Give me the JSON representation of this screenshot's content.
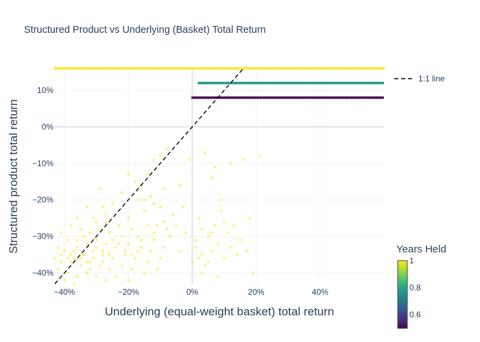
{
  "chart_data": {
    "type": "scatter",
    "title": "Structured Product vs Underlying (Basket) Total Return",
    "xlabel": "Underlying (equal-weight basket) total return",
    "ylabel": "Structured product total return",
    "xlim": [
      -0.43,
      0.6
    ],
    "ylim": [
      -0.43,
      0.16
    ],
    "x_ticks": [
      -0.4,
      -0.2,
      0,
      0.2,
      0.4
    ],
    "x_tick_labels": [
      "−40%",
      "−20%",
      "0%",
      "20%",
      "40%"
    ],
    "y_ticks": [
      -0.4,
      -0.3,
      -0.2,
      -0.1,
      0,
      0.1
    ],
    "y_tick_labels": [
      "−40%",
      "−30%",
      "−20%",
      "−10%",
      "0%",
      "10%"
    ],
    "grid": true,
    "reference_line": {
      "name": "1:1 line",
      "style": "dashed",
      "color": "#000000"
    },
    "colorbar": {
      "title": "Years Held",
      "colorscale": "Viridis",
      "range": [
        0.5,
        1.0
      ],
      "tick_values": [
        0.6,
        0.8,
        1.0
      ],
      "tick_labels": [
        "0.6",
        "0.8",
        "1"
      ]
    },
    "horizontal_bands": [
      {
        "years_held": 1.0,
        "y": 0.16,
        "x_range": [
          -0.43,
          0.6
        ],
        "color": "#fde725"
      },
      {
        "years_held": 0.75,
        "y": 0.12,
        "x_range": [
          0.02,
          0.6
        ],
        "color": "#21918c"
      },
      {
        "years_held": 0.5,
        "y": 0.08,
        "x_range": [
          0.0,
          0.6
        ],
        "color": "#440154"
      }
    ],
    "scattered_points": {
      "years_held": 1.0,
      "color": "#fde725",
      "points": [
        [
          -0.08,
          -0.06
        ],
        [
          -0.1,
          -0.08
        ],
        [
          -0.12,
          -0.09
        ],
        [
          -0.14,
          -0.13
        ],
        [
          -0.16,
          -0.16
        ],
        [
          -0.2,
          -0.13
        ],
        [
          -0.18,
          -0.15
        ],
        [
          -0.04,
          -0.16
        ],
        [
          -0.09,
          -0.17
        ],
        [
          -0.13,
          -0.19
        ],
        [
          -0.17,
          -0.2
        ],
        [
          -0.22,
          -0.18
        ],
        [
          -0.25,
          -0.21
        ],
        [
          -0.29,
          -0.17
        ],
        [
          -0.28,
          -0.22
        ],
        [
          -0.24,
          -0.24
        ],
        [
          -0.2,
          -0.25
        ],
        [
          -0.15,
          -0.23
        ],
        [
          -0.1,
          -0.22
        ],
        [
          -0.06,
          -0.24
        ],
        [
          -0.03,
          -0.22
        ],
        [
          -0.33,
          -0.22
        ],
        [
          -0.36,
          -0.25
        ],
        [
          -0.31,
          -0.25
        ],
        [
          -0.27,
          -0.26
        ],
        [
          -0.23,
          -0.27
        ],
        [
          -0.19,
          -0.28
        ],
        [
          -0.14,
          -0.27
        ],
        [
          -0.09,
          -0.26
        ],
        [
          -0.05,
          -0.27
        ],
        [
          -0.02,
          -0.29
        ],
        [
          -0.38,
          -0.27
        ],
        [
          -0.35,
          -0.28
        ],
        [
          -0.32,
          -0.29
        ],
        [
          -0.29,
          -0.28
        ],
        [
          -0.26,
          -0.29
        ],
        [
          -0.22,
          -0.3
        ],
        [
          -0.17,
          -0.3
        ],
        [
          -0.12,
          -0.29
        ],
        [
          -0.07,
          -0.3
        ],
        [
          -0.41,
          -0.29
        ],
        [
          -0.39,
          -0.31
        ],
        [
          -0.36,
          -0.31
        ],
        [
          -0.33,
          -0.32
        ],
        [
          -0.3,
          -0.31
        ],
        [
          -0.27,
          -0.32
        ],
        [
          -0.24,
          -0.33
        ],
        [
          -0.2,
          -0.32
        ],
        [
          -0.16,
          -0.33
        ],
        [
          -0.13,
          -0.34
        ],
        [
          -0.09,
          -0.33
        ],
        [
          -0.04,
          -0.34
        ],
        [
          -0.42,
          -0.33
        ],
        [
          -0.4,
          -0.34
        ],
        [
          -0.37,
          -0.34
        ],
        [
          -0.34,
          -0.35
        ],
        [
          -0.31,
          -0.34
        ],
        [
          -0.28,
          -0.35
        ],
        [
          -0.25,
          -0.36
        ],
        [
          -0.21,
          -0.35
        ],
        [
          -0.18,
          -0.36
        ],
        [
          -0.14,
          -0.37
        ],
        [
          -0.1,
          -0.36
        ],
        [
          -0.43,
          -0.36
        ],
        [
          -0.41,
          -0.37
        ],
        [
          -0.38,
          -0.37
        ],
        [
          -0.35,
          -0.38
        ],
        [
          -0.32,
          -0.37
        ],
        [
          -0.29,
          -0.38
        ],
        [
          -0.26,
          -0.39
        ],
        [
          -0.22,
          -0.38
        ],
        [
          -0.19,
          -0.39
        ],
        [
          -0.15,
          -0.4
        ],
        [
          -0.11,
          -0.39
        ],
        [
          -0.42,
          -0.39
        ],
        [
          -0.39,
          -0.4
        ],
        [
          -0.36,
          -0.41
        ],
        [
          -0.33,
          -0.4
        ],
        [
          -0.3,
          -0.41
        ],
        [
          -0.27,
          -0.42
        ],
        [
          -0.24,
          -0.41
        ],
        [
          -0.2,
          -0.42
        ],
        [
          -0.4,
          -0.42
        ],
        [
          -0.37,
          -0.43
        ],
        [
          -0.34,
          -0.35
        ],
        [
          -0.36,
          -0.33
        ],
        [
          -0.38,
          -0.35
        ],
        [
          -0.37,
          -0.36
        ],
        [
          -0.35,
          -0.36
        ],
        [
          -0.33,
          -0.37
        ],
        [
          -0.31,
          -0.36
        ],
        [
          -0.3,
          -0.33
        ],
        [
          -0.28,
          -0.34
        ],
        [
          -0.26,
          -0.35
        ],
        [
          -0.25,
          -0.31
        ],
        [
          -0.23,
          -0.32
        ],
        [
          -0.21,
          -0.34
        ],
        [
          -0.19,
          -0.35
        ],
        [
          -0.17,
          -0.34
        ],
        [
          -0.16,
          -0.31
        ],
        [
          -0.12,
          -0.31
        ],
        [
          -0.11,
          -0.27
        ],
        [
          -0.08,
          -0.28
        ],
        [
          -0.15,
          -0.2
        ],
        [
          -0.12,
          -0.21
        ],
        [
          -0.27,
          -0.24
        ],
        [
          -0.3,
          -0.26
        ],
        [
          -0.34,
          -0.3
        ],
        [
          -0.39,
          -0.36
        ],
        [
          -0.41,
          -0.35
        ],
        [
          -0.32,
          -0.39
        ],
        [
          -0.28,
          -0.37
        ],
        [
          0.02,
          -0.36
        ],
        [
          0.03,
          -0.4
        ],
        [
          0.04,
          -0.38
        ],
        [
          0.05,
          -0.3
        ],
        [
          0.06,
          -0.14
        ],
        [
          0.07,
          -0.27
        ],
        [
          0.08,
          -0.32
        ],
        [
          0.09,
          -0.23
        ],
        [
          0.1,
          -0.26
        ],
        [
          0.12,
          -0.1
        ],
        [
          0.13,
          -0.27
        ],
        [
          0.15,
          -0.31
        ],
        [
          0.16,
          -0.09
        ],
        [
          0.17,
          -0.34
        ],
        [
          0.18,
          -0.25
        ],
        [
          0.19,
          -0.4
        ],
        [
          0.21,
          -0.08
        ],
        [
          0.04,
          -0.07
        ],
        [
          0.07,
          -0.11
        ],
        [
          0.01,
          -0.33
        ],
        [
          0.03,
          -0.28
        ],
        [
          0.05,
          -0.37
        ],
        [
          0.08,
          -0.41
        ],
        [
          0.11,
          -0.29
        ],
        [
          0.14,
          -0.35
        ],
        [
          0.02,
          -0.25
        ],
        [
          0.06,
          -0.34
        ],
        [
          0.09,
          -0.2
        ],
        [
          -0.01,
          -0.09
        ],
        [
          0.0,
          -0.37
        ],
        [
          0.01,
          -0.31
        ],
        [
          0.12,
          -0.33
        ],
        [
          0.1,
          -0.36
        ],
        [
          0.03,
          -0.35
        ],
        [
          0.06,
          -0.29
        ]
      ]
    }
  }
}
